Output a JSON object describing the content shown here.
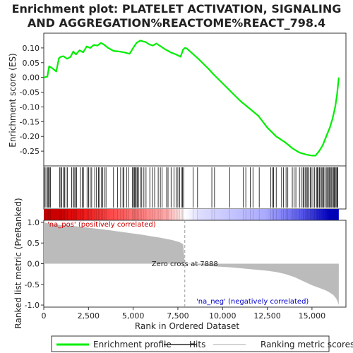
{
  "chart_data": {
    "type": "line",
    "title_line1": "Enrichment plot: PLATELET ACTIVATION, SIGNALING",
    "title_line2": "AND AGGREGATION%REACTOME%REACT_798.4",
    "n_genes": 16500,
    "es_panel": {
      "ylabel": "Enrichment score (ES)",
      "ylim": [
        -0.3,
        0.15
      ],
      "yticks": [
        0.1,
        0.05,
        0.0,
        -0.05,
        -0.1,
        -0.15,
        -0.2,
        -0.25
      ],
      "ytick_labels": [
        "0.10",
        "0.05",
        "0.00",
        "-0.05",
        "-0.10",
        "-0.15",
        "-0.20",
        "-0.25"
      ],
      "line_color": "#00ee00",
      "series": {
        "name": "Enrichment profile",
        "x": [
          0,
          200,
          300,
          500,
          700,
          850,
          950,
          1100,
          1300,
          1500,
          1650,
          1800,
          2000,
          2200,
          2400,
          2600,
          2800,
          3000,
          3200,
          3350,
          3600,
          3900,
          4200,
          4500,
          4800,
          5000,
          5200,
          5400,
          5550,
          5700,
          5900,
          6100,
          6300,
          6500,
          6800,
          7100,
          7400,
          7650,
          7800,
          7900,
          8000,
          8300,
          8700,
          9200,
          9500,
          10000,
          10500,
          11000,
          11500,
          12000,
          12500,
          13000,
          13500,
          13900,
          14300,
          14700,
          15000,
          15200,
          15400,
          15600,
          15800,
          16000,
          16150,
          16300,
          16400,
          16450,
          16500
        ],
        "y": [
          0.0,
          0.003,
          0.038,
          0.03,
          0.02,
          0.065,
          0.07,
          0.072,
          0.063,
          0.07,
          0.088,
          0.078,
          0.092,
          0.085,
          0.105,
          0.1,
          0.11,
          0.108,
          0.117,
          0.112,
          0.1,
          0.09,
          0.088,
          0.085,
          0.08,
          0.1,
          0.118,
          0.125,
          0.122,
          0.12,
          0.112,
          0.108,
          0.115,
          0.107,
          0.095,
          0.085,
          0.078,
          0.07,
          0.095,
          0.1,
          0.098,
          0.082,
          0.06,
          0.03,
          0.01,
          -0.02,
          -0.05,
          -0.08,
          -0.105,
          -0.13,
          -0.17,
          -0.2,
          -0.22,
          -0.24,
          -0.255,
          -0.262,
          -0.265,
          -0.265,
          -0.25,
          -0.23,
          -0.2,
          -0.17,
          -0.14,
          -0.1,
          -0.06,
          -0.03,
          0.0
        ]
      }
    },
    "hits_panel": {
      "hit_positions": [
        50,
        120,
        210,
        260,
        330,
        380,
        880,
        950,
        1000,
        1090,
        1160,
        1240,
        1330,
        1560,
        1640,
        1700,
        1760,
        1840,
        2050,
        2150,
        2220,
        2420,
        2510,
        2600,
        2680,
        2850,
        2950,
        3060,
        3120,
        3230,
        3290,
        3380,
        3480,
        3900,
        4120,
        4300,
        4430,
        4480,
        4630,
        4740,
        4960,
        5030,
        5080,
        5130,
        5170,
        5230,
        5300,
        5400,
        5480,
        5600,
        5720,
        5930,
        6080,
        6200,
        6400,
        6520,
        6620,
        6870,
        6950,
        7120,
        7280,
        7400,
        7500,
        7600,
        7700,
        7760,
        7820,
        8350,
        8600,
        9400,
        9550,
        10400,
        11150,
        11300,
        11550,
        11700,
        12050,
        12700,
        12800,
        12850,
        13000,
        13300,
        13400,
        13550,
        13650,
        13900,
        14000,
        14100,
        14300,
        14400,
        14500,
        14550,
        14620,
        14700,
        14760,
        14820,
        14900,
        14960,
        15050,
        15150,
        15250,
        15300,
        15350,
        15420,
        15480,
        15550,
        15600,
        15650,
        15720,
        15800,
        15860,
        15920,
        15980,
        16030,
        16080,
        16150,
        16200,
        16250,
        16300,
        16350,
        16400,
        16450
      ]
    },
    "rank_panel": {
      "ylabel": "Ranked list metric (PreRanked)",
      "ylim": [
        -1.05,
        1.05
      ],
      "yticks": [
        1.0,
        0.5,
        0.0,
        -0.5,
        -1.0
      ],
      "ytick_labels": [
        "1.0",
        "0.5",
        "0.0",
        "-0.5",
        "-1.0"
      ],
      "metric_x": [
        0,
        300,
        800,
        1500,
        2500,
        3500,
        4500,
        5500,
        6500,
        7200,
        7600,
        7800,
        7888,
        9000,
        10500,
        11500,
        12500,
        13000,
        13500,
        14000,
        14500,
        15000,
        15500,
        15800,
        16000,
        16200,
        16350,
        16450,
        16500
      ],
      "metric_y": [
        1.0,
        0.97,
        0.94,
        0.92,
        0.87,
        0.82,
        0.76,
        0.7,
        0.63,
        0.57,
        0.52,
        0.47,
        0.0,
        -0.05,
        -0.09,
        -0.13,
        -0.17,
        -0.2,
        -0.25,
        -0.32,
        -0.42,
        -0.52,
        -0.6,
        -0.65,
        -0.7,
        -0.76,
        -0.84,
        -0.93,
        -1.0
      ],
      "pos_label": "'na_pos' (positively correlated)",
      "neg_label": "'na_neg' (negatively correlated)",
      "zero_cross_label": "Zero cross at 7888",
      "zero_cross": 7888,
      "pos_color": "#cc0000",
      "neg_color": "#0000cc"
    },
    "xaxis": {
      "xlabel": "Rank in Ordered Dataset",
      "xlim": [
        0,
        16900
      ],
      "xticks": [
        0,
        2500,
        5000,
        7500,
        10000,
        12500,
        15000
      ],
      "xtick_labels": [
        "0",
        "2,500",
        "5,000",
        "7,500",
        "10,000",
        "12,500",
        "15,000"
      ]
    },
    "legend": {
      "items": [
        {
          "label": "Enrichment profile",
          "color": "#00ee00",
          "kind": "thick"
        },
        {
          "label": "Hits",
          "color": "#000000",
          "kind": "thin"
        },
        {
          "label": "Ranking metric scores",
          "color": "#bbbbbb",
          "kind": "thin"
        }
      ]
    }
  }
}
